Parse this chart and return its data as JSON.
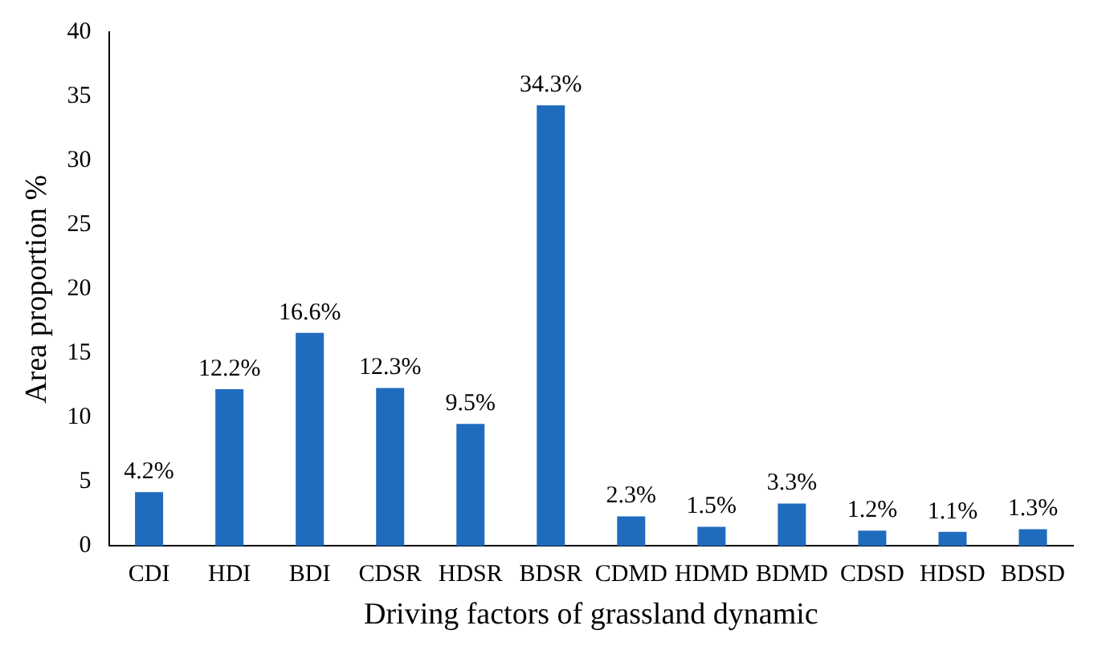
{
  "chart_data": {
    "type": "bar",
    "xlabel": "Driving factors of grassland dynamic",
    "ylabel": "Area proportion %",
    "categories": [
      "CDI",
      "HDI",
      "BDI",
      "CDSR",
      "HDSR",
      "BDSR",
      "CDMD",
      "HDMD",
      "BDMD",
      "CDSD",
      "HDSD",
      "BDSD"
    ],
    "values": [
      4.2,
      12.2,
      16.6,
      12.3,
      9.5,
      34.3,
      2.3,
      1.5,
      3.3,
      1.2,
      1.1,
      1.3
    ],
    "value_labels": [
      "4.2%",
      "12.2%",
      "16.6%",
      "12.3%",
      "9.5%",
      "34.3%",
      "2.3%",
      "1.5%",
      "3.3%",
      "1.2%",
      "1.1%",
      "1.3%"
    ],
    "color": "#1f6cbf",
    "ylim": [
      0,
      40
    ],
    "yticks": [
      0,
      5,
      10,
      15,
      20,
      25,
      30,
      35,
      40
    ],
    "grid": false,
    "legend": false
  }
}
